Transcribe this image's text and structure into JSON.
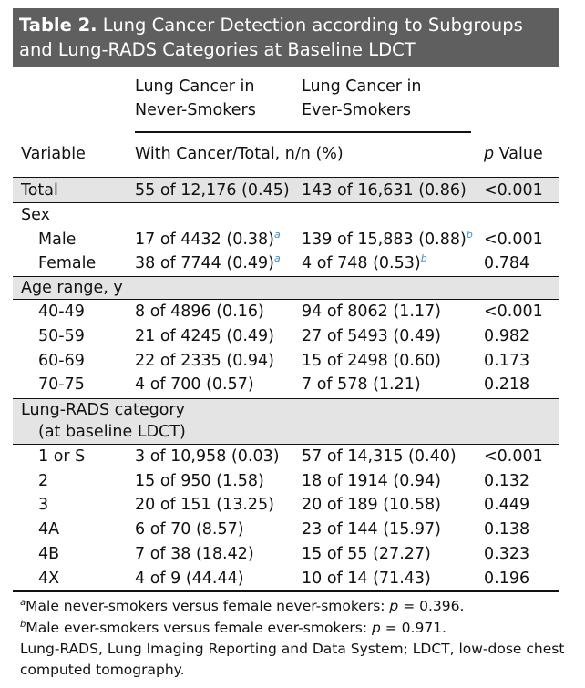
{
  "title": {
    "label": "Table 2.",
    "text": " Lung Cancer Detection according to Subgroups and Lung-RADS Categories at Baseline LDCT"
  },
  "header": {
    "group1": [
      "Lung Cancer in",
      "Never-Smokers"
    ],
    "group2": [
      "Lung Cancer in",
      "Ever-Smokers"
    ],
    "variable": "Variable",
    "span_label": "With Cancer/Total, n/n (%)",
    "p_italic": "p",
    "p_rest": " Value"
  },
  "rows": {
    "total": {
      "label": "Total",
      "never": "55 of 12,176 (0.45)",
      "ever": "143 of 16,631 (0.86)",
      "p": "<0.001"
    },
    "sex": {
      "label": "Sex"
    },
    "male": {
      "label": "Male",
      "never": "17 of 4432 (0.38)",
      "never_sup": "a",
      "ever": "139 of 15,883 (0.88)",
      "ever_sup": "b",
      "p": "<0.001"
    },
    "female": {
      "label": "Female",
      "never": "38 of 7744 (0.49)",
      "never_sup": "a",
      "ever": "4 of 748 (0.53)",
      "ever_sup": "b",
      "p": "0.784"
    },
    "age": {
      "label": "Age range, y"
    },
    "age1": {
      "label": "40-49",
      "never": "8 of 4896 (0.16)",
      "ever": "94 of 8062 (1.17)",
      "p": "<0.001"
    },
    "age2": {
      "label": "50-59",
      "never": "21 of 4245 (0.49)",
      "ever": "27 of 5493 (0.49)",
      "p": "0.982"
    },
    "age3": {
      "label": "60-69",
      "never": "22 of 2335 (0.94)",
      "ever": "15 of 2498 (0.60)",
      "p": "0.173"
    },
    "age4": {
      "label": "70-75",
      "never": "4 of 700 (0.57)",
      "ever": "7 of 578 (1.21)",
      "p": "0.218"
    },
    "rads": {
      "label": "Lung-RADS category",
      "label2": "(at baseline LDCT)"
    },
    "r1": {
      "label": "1 or S",
      "never": "3 of 10,958 (0.03)",
      "ever": "57 of 14,315 (0.40)",
      "p": "<0.001"
    },
    "r2": {
      "label": "2",
      "never": "15 of 950 (1.58)",
      "ever": "18 of 1914 (0.94)",
      "p": "0.132"
    },
    "r3": {
      "label": "3",
      "never": "20 of 151 (13.25)",
      "ever": "20 of 189 (10.58)",
      "p": "0.449"
    },
    "r4a": {
      "label": "4A",
      "never": "6 of 70 (8.57)",
      "ever": "23 of 144 (15.97)",
      "p": "0.138"
    },
    "r4b": {
      "label": "4B",
      "never": "7 of 38 (18.42)",
      "ever": "15 of 55 (27.27)",
      "p": "0.323"
    },
    "r4x": {
      "label": "4X",
      "never": "4 of 9 (44.44)",
      "ever": "10 of 14 (71.43)",
      "p": "0.196"
    }
  },
  "footnotes": {
    "a_sup": "a",
    "a_text": "Male never-smokers versus female never-smokers: ",
    "a_p": "p",
    "a_val": " = 0.396.",
    "b_sup": "b",
    "b_text": "Male ever-smokers versus female ever-smokers: ",
    "b_p": "p",
    "b_val": " = 0.971.",
    "abbrev1": "Lung-RADS, Lung Imaging Reporting and Data System; LDCT, low-dose chest",
    "abbrev2": "computed tomography."
  }
}
